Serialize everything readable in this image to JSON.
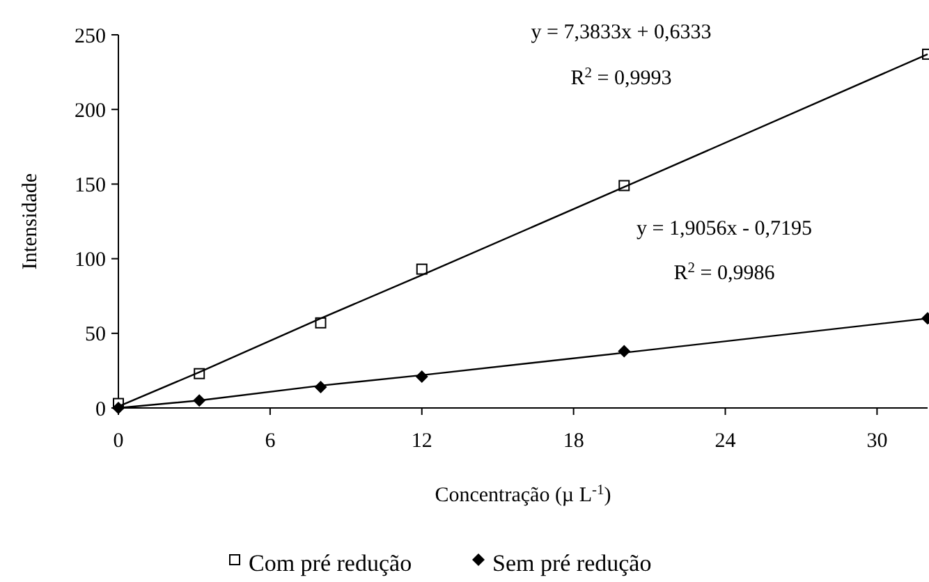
{
  "chart_data": {
    "type": "scatter",
    "xlabel": "Concentração (µ L$^{-1}$)",
    "ylabel": "Intensidade",
    "xlim": [
      0,
      32
    ],
    "xticks": [
      0,
      6,
      12,
      18,
      24,
      30
    ],
    "ylim": [
      0,
      250
    ],
    "yticks": [
      0,
      50,
      100,
      150,
      200,
      250
    ],
    "grid": false,
    "legend": "bottom",
    "x": [
      0,
      3.2,
      8,
      12,
      20,
      32
    ],
    "series": [
      {
        "name": "Com pré redução",
        "color": "#000000",
        "marker": "square",
        "values": [
          3,
          23,
          57,
          93,
          149,
          237
        ]
      },
      {
        "name": "Sem pré redução",
        "color": "#000000",
        "marker": "diamond",
        "values": [
          0,
          5,
          14,
          21,
          38,
          60
        ]
      },
      {
        "type": "line",
        "color": "#000000",
        "marker": "none",
        "values": [
          1,
          24,
          60,
          89,
          148,
          237
        ]
      },
      {
        "type": "line",
        "color": "#000000",
        "marker": "none",
        "values": [
          0,
          5,
          15,
          22,
          37,
          60
        ]
      }
    ],
    "annotations": [
      "y = 7,3833x + 0,6333",
      "R$^{2}$ = 0,9993",
      "y = 1,9056x - 0,7195",
      "R$^{2}$ = 0,9986"
    ]
  }
}
